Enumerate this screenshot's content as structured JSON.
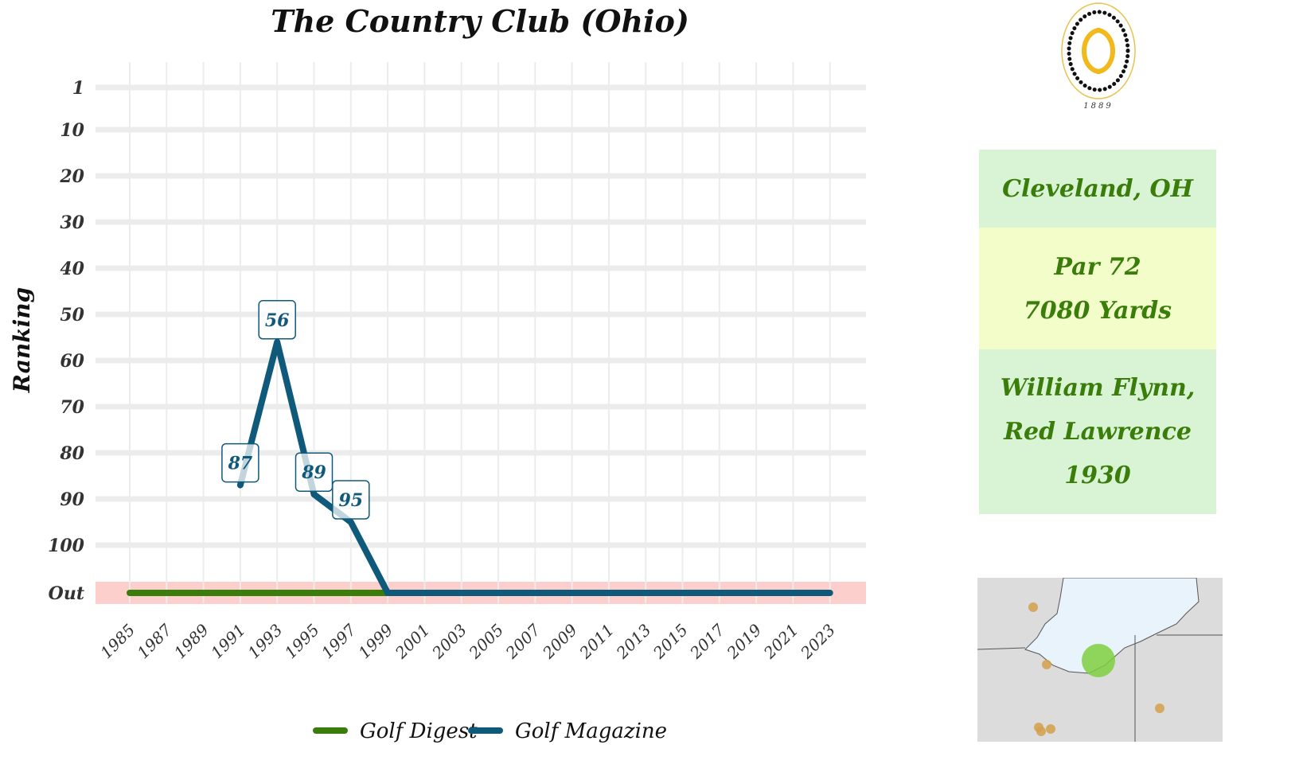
{
  "chart_data": {
    "type": "line",
    "title": "The Country Club (Ohio)",
    "ylabel": "Ranking",
    "xlabel": "",
    "x_ticks": [
      "1985",
      "1987",
      "1989",
      "1991",
      "1993",
      "1995",
      "1997",
      "1999",
      "2001",
      "2003",
      "2005",
      "2007",
      "2009",
      "2011",
      "2013",
      "2015",
      "2017",
      "2019",
      "2021",
      "2023"
    ],
    "y_ticks": [
      "1",
      "10",
      "20",
      "30",
      "40",
      "50",
      "60",
      "70",
      "80",
      "90",
      "100",
      "Out"
    ],
    "y_reversed": true,
    "out_band_color": "#fccfcc",
    "grid": true,
    "legend_position": "bottom",
    "series": [
      {
        "name": "Golf Digest",
        "color": "#3a7d0a",
        "points": [
          [
            "1985",
            "Out"
          ],
          [
            "1999",
            "Out"
          ]
        ]
      },
      {
        "name": "Golf Magazine",
        "color": "#0f5a7a",
        "points": [
          [
            "1991",
            "87"
          ],
          [
            "1993",
            "56"
          ],
          [
            "1995",
            "89"
          ],
          [
            "1997",
            "95"
          ],
          [
            "1999",
            "Out"
          ],
          [
            "2023",
            "Out"
          ]
        ]
      }
    ],
    "data_labels": [
      {
        "x": "1991",
        "value": "87"
      },
      {
        "x": "1993",
        "value": "56"
      },
      {
        "x": "1995",
        "value": "89"
      },
      {
        "x": "1997",
        "value": "95"
      }
    ]
  },
  "logo": {
    "year": "1889",
    "icon": "country-club-logo-icon"
  },
  "info": {
    "location": "Cleveland, OH",
    "par": "Par 72",
    "yards": "7080 Yards",
    "architect_line1": "William Flynn,",
    "architect_line2": "Red Lawrence",
    "year_built": "1930"
  },
  "map": {
    "icon": "location-map-icon",
    "highlight_color": "#7fcf3f",
    "other_color": "#d4a04a"
  }
}
